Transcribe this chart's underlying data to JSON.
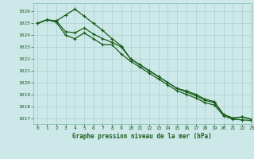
{
  "title": "Graphe pression niveau de la mer (hPa)",
  "bg_color": "#cce8e8",
  "grid_color": "#aad0d0",
  "line_color": "#1a5c1a",
  "xlim": [
    -0.5,
    23
  ],
  "ylim": [
    1016.5,
    1026.7
  ],
  "yticks": [
    1017,
    1018,
    1019,
    1020,
    1021,
    1022,
    1023,
    1024,
    1025,
    1026
  ],
  "xticks": [
    0,
    1,
    2,
    3,
    4,
    5,
    6,
    7,
    8,
    9,
    10,
    11,
    12,
    13,
    14,
    15,
    16,
    17,
    18,
    19,
    20,
    21,
    22,
    23
  ],
  "line1": [
    1025.0,
    1025.3,
    1025.2,
    1025.7,
    1026.2,
    1025.6,
    1025.0,
    1024.4,
    1023.7,
    1023.1,
    1022.0,
    1021.5,
    1021.0,
    1020.5,
    1020.0,
    1019.5,
    1019.3,
    1019.0,
    1018.6,
    1018.4,
    1017.3,
    1017.0,
    1017.1,
    1016.9
  ],
  "line2": [
    1025.0,
    1025.3,
    1025.2,
    1024.3,
    1024.2,
    1024.6,
    1024.1,
    1023.7,
    1023.4,
    1023.0,
    1022.0,
    1021.5,
    1021.0,
    1020.5,
    1020.0,
    1019.5,
    1019.2,
    1018.9,
    1018.5,
    1018.3,
    1017.3,
    1017.0,
    1017.1,
    1016.9
  ],
  "line3": [
    1025.0,
    1025.3,
    1025.1,
    1024.0,
    1023.7,
    1024.2,
    1023.7,
    1023.2,
    1023.2,
    1022.4,
    1021.8,
    1021.3,
    1020.8,
    1020.3,
    1019.8,
    1019.3,
    1019.0,
    1018.7,
    1018.3,
    1018.1,
    1017.2,
    1016.9,
    1016.85,
    1016.8
  ]
}
